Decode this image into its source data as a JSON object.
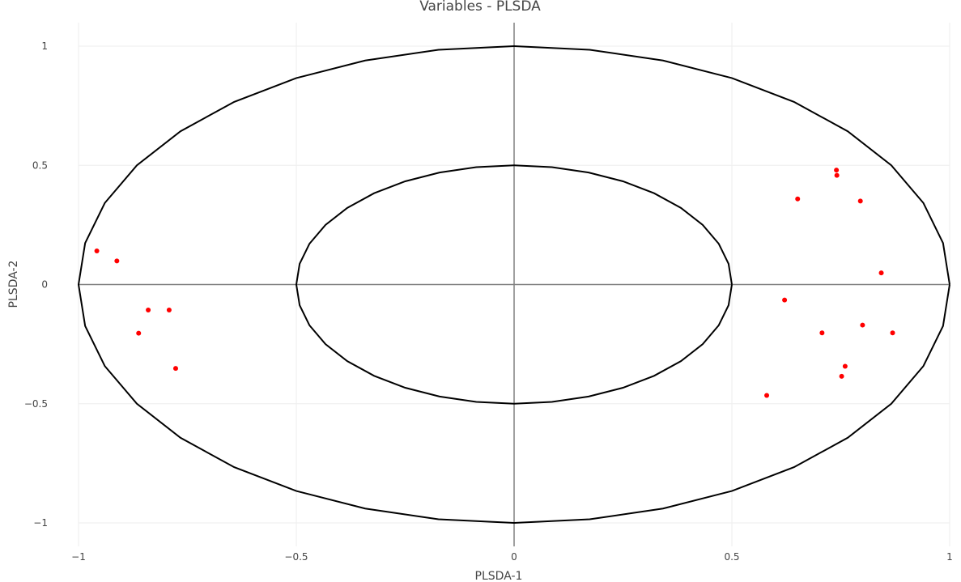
{
  "chart_data": {
    "type": "scatter",
    "title": "Variables - PLSDA",
    "xlabel": "PLSDA-1",
    "ylabel": "PLSDA-2",
    "xlim": [
      -1,
      1
    ],
    "ylim": [
      -1,
      1
    ],
    "xticks": [
      -1,
      -0.5,
      0,
      0.5,
      1
    ],
    "yticks": [
      -1,
      -0.5,
      0,
      0.5,
      1
    ],
    "xtick_labels": [
      "−1",
      "−0.5",
      "0",
      "0.5",
      "1"
    ],
    "ytick_labels": [
      "−1",
      "−0.5",
      "0",
      "0.5",
      "1"
    ],
    "grid": true,
    "circles": [
      {
        "radius": 1
      },
      {
        "radius": 0.5
      }
    ],
    "colors": {
      "points": "#ff0000",
      "circles": "#000000",
      "axes_lines": "#808080",
      "grid": "#eeeeee"
    },
    "points": [
      {
        "x": -0.958,
        "y": 0.141
      },
      {
        "x": -0.912,
        "y": 0.099
      },
      {
        "x": -0.84,
        "y": -0.107
      },
      {
        "x": -0.792,
        "y": -0.107
      },
      {
        "x": -0.862,
        "y": -0.204
      },
      {
        "x": -0.777,
        "y": -0.352
      },
      {
        "x": 0.74,
        "y": 0.48
      },
      {
        "x": 0.741,
        "y": 0.458
      },
      {
        "x": 0.651,
        "y": 0.359
      },
      {
        "x": 0.795,
        "y": 0.35
      },
      {
        "x": 0.843,
        "y": 0.049
      },
      {
        "x": 0.621,
        "y": -0.065
      },
      {
        "x": 0.707,
        "y": -0.203
      },
      {
        "x": 0.8,
        "y": -0.17
      },
      {
        "x": 0.869,
        "y": -0.203
      },
      {
        "x": 0.76,
        "y": -0.343
      },
      {
        "x": 0.752,
        "y": -0.385
      },
      {
        "x": 0.58,
        "y": -0.465
      }
    ]
  }
}
